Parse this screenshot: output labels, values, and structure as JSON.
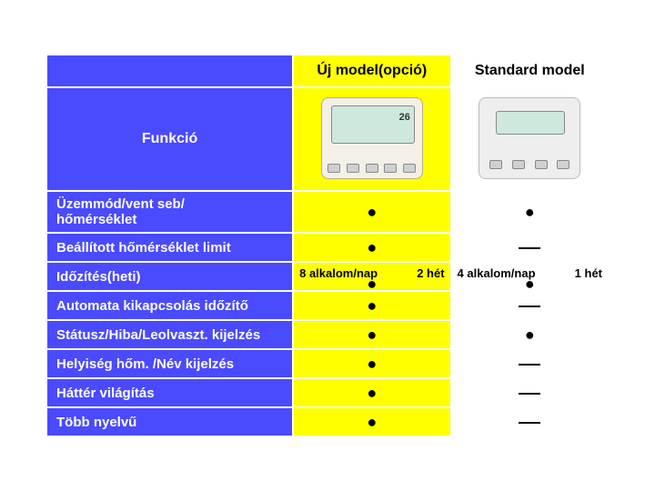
{
  "table": {
    "headers": {
      "func_label": "Funkció",
      "new_model": "Új model(opció)",
      "standard_model": "Standard model"
    },
    "rows": [
      {
        "label": "Üzemmód/vent seb/\nhőmérséklet",
        "new": "dot",
        "std": "dot"
      },
      {
        "label": "Beállított hőmérséklet limit",
        "new": "dot",
        "std": "dash"
      },
      {
        "label": "Időzítés(heti)",
        "new": "freq",
        "std": "freq",
        "new_freq": {
          "left": "8 alkalom/nap",
          "right": "2 hét"
        },
        "std_freq": {
          "left": "4 alkalom/nap",
          "right": "1 hét"
        }
      },
      {
        "label": "Automata kikapcsolás időzítő",
        "new": "dot",
        "std": "dash"
      },
      {
        "label": "Státusz/Hiba/Leolvaszt. kijelzés",
        "new": "dot",
        "std": "dot"
      },
      {
        "label": "Helyiség hőm. /Név kijelzés",
        "new": "dot",
        "std": "dash"
      },
      {
        "label": "Háttér világítás",
        "new": "dot",
        "std": "dash"
      },
      {
        "label": "Több nyelvű",
        "new": "dot",
        "std": "dash"
      }
    ],
    "device_new_display": "26",
    "colors": {
      "table_bg": "#4a4aff",
      "new_col_bg": "#ffff00",
      "std_col_bg": "#ffffff",
      "border": "#ffffff",
      "text_on_blue": "#ffffff",
      "dot": "#000000"
    },
    "fonts": {
      "header_size_pt": 12,
      "row_size_pt": 11
    }
  }
}
